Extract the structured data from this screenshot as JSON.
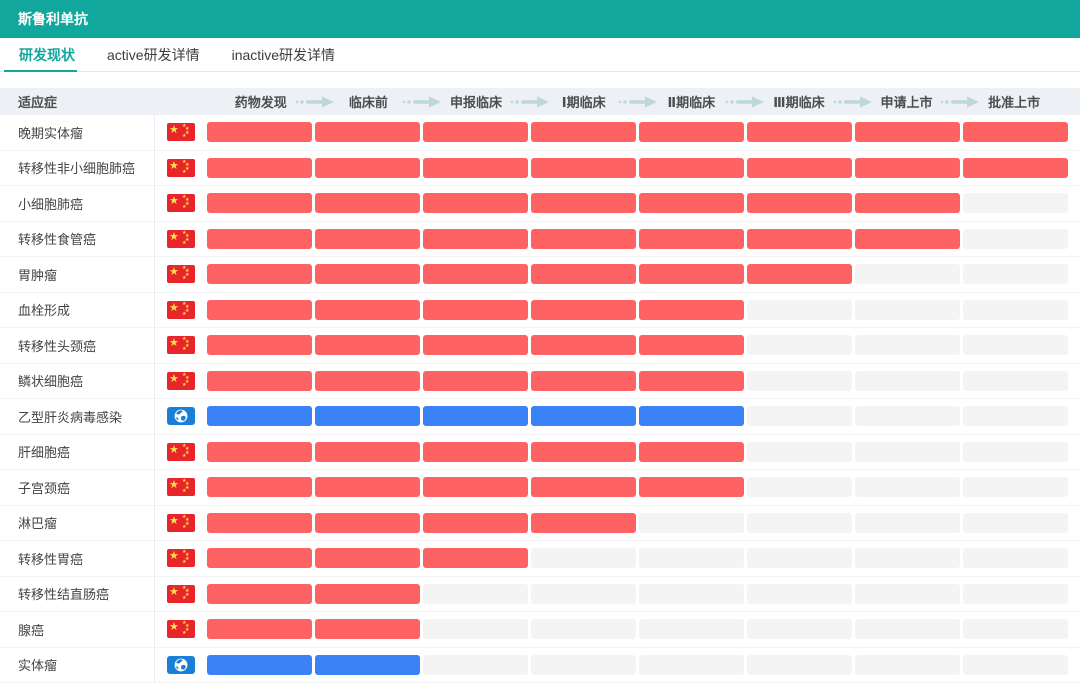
{
  "header": {
    "title": "斯鲁利单抗"
  },
  "tabs": [
    {
      "label": "研发现状",
      "active": true
    },
    {
      "label": "active研发详情",
      "active": false
    },
    {
      "label": "inactive研发详情",
      "active": false
    }
  ],
  "table": {
    "indication_header": "适应症",
    "stages": [
      "药物发现",
      "临床前",
      "申报临床",
      "Ⅰ期临床",
      "Ⅱ期临床",
      "Ⅲ期临床",
      "申请上市",
      "批准上市"
    ],
    "rows": [
      {
        "indication": "晚期实体瘤",
        "flag": "china",
        "bar": "red",
        "stages_done": 8
      },
      {
        "indication": "转移性非小细胞肺癌",
        "flag": "china",
        "bar": "red",
        "stages_done": 8
      },
      {
        "indication": "小细胞肺癌",
        "flag": "china",
        "bar": "red",
        "stages_done": 7
      },
      {
        "indication": "转移性食管癌",
        "flag": "china",
        "bar": "red",
        "stages_done": 7
      },
      {
        "indication": "胃肿瘤",
        "flag": "china",
        "bar": "red",
        "stages_done": 6
      },
      {
        "indication": "血栓形成",
        "flag": "china",
        "bar": "red",
        "stages_done": 5
      },
      {
        "indication": "转移性头颈癌",
        "flag": "china",
        "bar": "red",
        "stages_done": 5
      },
      {
        "indication": "鳞状细胞癌",
        "flag": "china",
        "bar": "red",
        "stages_done": 5
      },
      {
        "indication": "乙型肝炎病毒感染",
        "flag": "globe",
        "bar": "blue",
        "stages_done": 5
      },
      {
        "indication": "肝细胞癌",
        "flag": "china",
        "bar": "red",
        "stages_done": 5
      },
      {
        "indication": "子宫颈癌",
        "flag": "china",
        "bar": "red",
        "stages_done": 5
      },
      {
        "indication": "淋巴瘤",
        "flag": "china",
        "bar": "red",
        "stages_done": 4
      },
      {
        "indication": "转移性胃癌",
        "flag": "china",
        "bar": "red",
        "stages_done": 3
      },
      {
        "indication": "转移性结直肠癌",
        "flag": "china",
        "bar": "red",
        "stages_done": 2
      },
      {
        "indication": "腺癌",
        "flag": "china",
        "bar": "red",
        "stages_done": 2
      },
      {
        "indication": "实体瘤",
        "flag": "globe",
        "bar": "blue",
        "stages_done": 2
      }
    ]
  },
  "colors": {
    "accent": "#12a79c",
    "arrow": "#bcd9d4",
    "header_row_bg": "#edf1f6",
    "header_text": "#4d4d4d",
    "text_dark": "#444444",
    "bar_red": "#ff6262",
    "bar_blue": "#3b82f6",
    "bar_empty": "#f4f4f4",
    "flag_red": "#e8252b",
    "flag_star": "#f9e04c",
    "globe_blue": "#1a7fd6",
    "row_border": "#f1f3f7",
    "col_border": "#e9edf2",
    "tab_border": "#e8e8e8"
  }
}
